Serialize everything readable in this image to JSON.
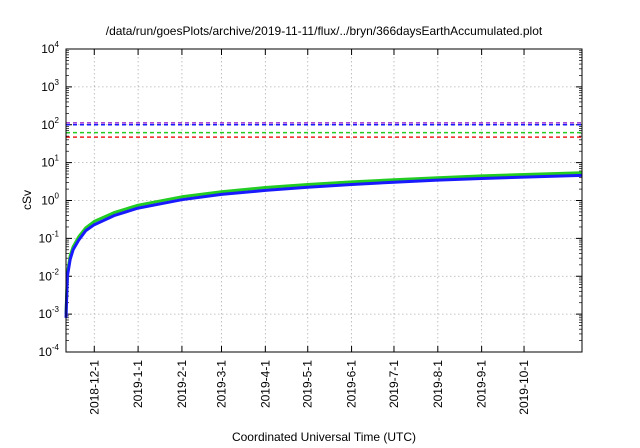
{
  "chart_data": {
    "type": "line",
    "title": "/data/run/goesPlots/archive/2019-11-11/flux/../bryn/366daysEarthAccumulated.plot",
    "xlabel": "Coordinated Universal Time (UTC)",
    "ylabel": "cSv",
    "yscale": "log",
    "ylim": [
      0.0001,
      10000
    ],
    "y_ticks": [
      {
        "base": "10",
        "exp": "-4",
        "value": 0.0001
      },
      {
        "base": "10",
        "exp": "-3",
        "value": 0.001
      },
      {
        "base": "10",
        "exp": "-2",
        "value": 0.01
      },
      {
        "base": "10",
        "exp": "-1",
        "value": 0.1
      },
      {
        "base": "10",
        "exp": "0",
        "value": 1
      },
      {
        "base": "10",
        "exp": "1",
        "value": 10
      },
      {
        "base": "10",
        "exp": "2",
        "value": 100
      },
      {
        "base": "10",
        "exp": "3",
        "value": 1000
      },
      {
        "base": "10",
        "exp": "4",
        "value": 10000
      }
    ],
    "xlim": [
      "2018-11-11",
      "2019-11-11"
    ],
    "x_ticks": [
      "2018-12-1",
      "2019-1-1",
      "2019-2-1",
      "2019-3-1",
      "2019-4-1",
      "2019-5-1",
      "2019-6-1",
      "2019-7-1",
      "2019-8-1",
      "2019-9-1",
      "2019-10-1"
    ],
    "grid": true,
    "thresholds": [
      {
        "value": 112,
        "color": "#9b30d0",
        "style": "dashed"
      },
      {
        "value": 100,
        "color": "#1a1aff",
        "style": "dashed"
      },
      {
        "value": 62,
        "color": "#22cc22",
        "style": "dashed"
      },
      {
        "value": 47,
        "color": "#ee2020",
        "style": "dashed"
      }
    ],
    "series": [
      {
        "color": "#22cc22",
        "x": [
          "2018-11-11",
          "2018-11-12",
          "2018-11-14",
          "2018-11-16",
          "2018-11-20",
          "2018-11-25",
          "2018-12-1",
          "2018-12-15",
          "2019-1-1",
          "2019-2-1",
          "2019-3-1",
          "2019-4-1",
          "2019-5-1",
          "2019-6-1",
          "2019-7-1",
          "2019-8-1",
          "2019-9-1",
          "2019-10-1",
          "2019-11-11"
        ],
        "y": [
          0.001,
          0.012,
          0.035,
          0.06,
          0.11,
          0.19,
          0.28,
          0.48,
          0.75,
          1.25,
          1.7,
          2.2,
          2.65,
          3.1,
          3.55,
          4.0,
          4.45,
          4.85,
          5.4
        ]
      },
      {
        "color": "#1a1aff",
        "x": [
          "2018-11-11",
          "2018-11-12",
          "2018-11-14",
          "2018-11-16",
          "2018-11-20",
          "2018-11-25",
          "2018-12-1",
          "2018-12-15",
          "2019-1-1",
          "2019-2-1",
          "2019-3-1",
          "2019-4-1",
          "2019-5-1",
          "2019-6-1",
          "2019-7-1",
          "2019-8-1",
          "2019-9-1",
          "2019-10-1",
          "2019-11-11"
        ],
        "y": [
          0.0008,
          0.01,
          0.028,
          0.05,
          0.09,
          0.16,
          0.23,
          0.4,
          0.63,
          1.05,
          1.45,
          1.85,
          2.25,
          2.65,
          3.05,
          3.45,
          3.8,
          4.15,
          4.6
        ]
      }
    ]
  }
}
